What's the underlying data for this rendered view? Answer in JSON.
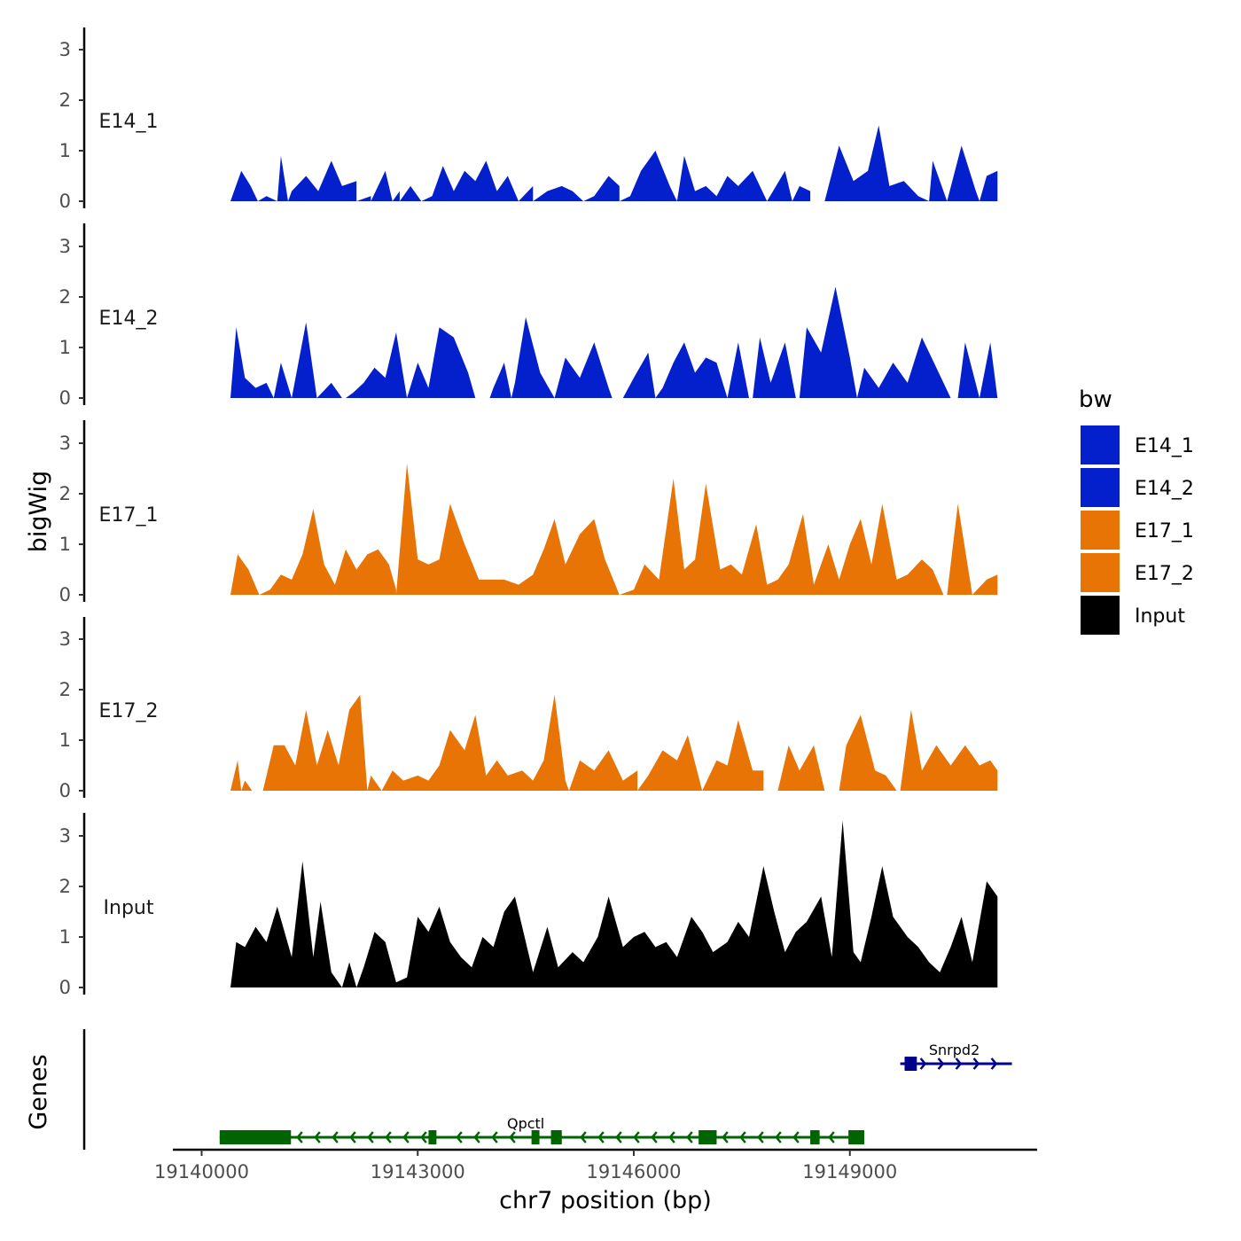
{
  "chart_data": {
    "type": "area",
    "title": "",
    "xlabel": "chr7 position (bp)",
    "ylabel": "bigWig",
    "genes_label": "Genes",
    "x_range": [
      19139600,
      19151600
    ],
    "x_ticks": [
      19140000,
      19143000,
      19146000,
      19149000
    ],
    "y_range": [
      0,
      3.4
    ],
    "y_ticks": [
      0,
      1,
      2,
      3
    ],
    "legend": {
      "title": "bw",
      "position": "right",
      "entries": [
        {
          "label": "E14_1",
          "color": "#0420cc"
        },
        {
          "label": "E14_2",
          "color": "#0420cc"
        },
        {
          "label": "E17_1",
          "color": "#e87405"
        },
        {
          "label": "E17_2",
          "color": "#e87405"
        },
        {
          "label": "Input",
          "color": "#000000"
        }
      ]
    },
    "series": [
      {
        "name": "E14_1",
        "color": "#0420cc",
        "x": [
          19140400,
          19140550,
          19140680,
          19140780,
          19140900,
          19141100,
          19141250,
          19141450,
          19141620,
          19141800,
          19141950,
          19142150,
          19142350,
          19142550,
          19142750,
          19142900,
          19143050,
          19143200,
          19143350,
          19143500,
          19143650,
          19143800,
          19143950,
          19144100,
          19144250,
          19144400,
          19144600,
          19144800,
          19145000,
          19145150,
          19145300,
          19145450,
          19145650,
          19145800,
          19145950,
          19146100,
          19146300,
          19146500,
          19146700,
          19146850,
          19147000,
          19147150,
          19147300,
          19147450,
          19147650,
          19147850,
          19148100,
          19148300,
          19148450,
          19148650,
          19148850,
          19149050,
          19149250,
          19149400,
          19149550,
          19149750,
          19149950,
          19150150,
          19150350,
          19150550,
          19150750,
          19150900,
          19151050
        ],
        "values": [
          0.1,
          0.6,
          0.3,
          0.0,
          0.1,
          0.9,
          0.2,
          0.5,
          0.2,
          0.8,
          0.3,
          0.4,
          0.1,
          0.6,
          0.2,
          0.3,
          0.0,
          0.1,
          0.7,
          0.2,
          0.6,
          0.4,
          0.8,
          0.2,
          0.5,
          0.0,
          0.3,
          0.2,
          0.3,
          0.2,
          0.0,
          0.1,
          0.5,
          0.3,
          0.1,
          0.6,
          1.0,
          0.3,
          0.9,
          0.2,
          0.3,
          0.1,
          0.5,
          0.3,
          0.6,
          0.0,
          0.6,
          0.3,
          0.2,
          0.0,
          1.1,
          0.4,
          0.6,
          1.5,
          0.3,
          0.4,
          0.1,
          0.8,
          0.0,
          1.1,
          0.2,
          0.5,
          0.6
        ],
        "zero_at": [
          19140400,
          19141050,
          19141200,
          19142150,
          19142350,
          19142650,
          19142750,
          19144600,
          19145800,
          19146600,
          19147850,
          19148200,
          19148450,
          19148650,
          19150100,
          19150800
        ]
      },
      {
        "name": "E14_2",
        "color": "#0420cc",
        "x": [
          19140400,
          19140480,
          19140600,
          19140750,
          19140900,
          19141000,
          19141100,
          19141250,
          19141450,
          19141600,
          19141800,
          19141950,
          19142100,
          19142250,
          19142400,
          19142550,
          19142700,
          19142850,
          19143000,
          19143150,
          19143300,
          19143500,
          19143700,
          19143900,
          19144050,
          19144200,
          19144350,
          19144500,
          19144700,
          19144900,
          19145050,
          19145250,
          19145450,
          19145650,
          19145850,
          19146000,
          19146200,
          19146400,
          19146550,
          19146700,
          19146850,
          19147000,
          19147150,
          19147300,
          19147450,
          19147600,
          19147750,
          19147900,
          19148100,
          19148250,
          19148400,
          19148600,
          19148800,
          19149000,
          19149200,
          19149400,
          19149600,
          19149800,
          19150000,
          19150200,
          19150400,
          19150600,
          19150800,
          19150950,
          19151050
        ],
        "values": [
          0.0,
          1.4,
          0.4,
          0.2,
          0.3,
          0.0,
          0.7,
          0.0,
          1.5,
          0.0,
          0.3,
          0.0,
          0.1,
          0.3,
          0.6,
          0.4,
          1.3,
          0.0,
          0.7,
          0.2,
          1.4,
          1.2,
          0.5,
          0.0,
          0.2,
          0.7,
          0.3,
          1.6,
          0.5,
          0.0,
          0.8,
          0.4,
          1.1,
          0.2,
          0.0,
          0.4,
          0.9,
          0.2,
          0.7,
          1.1,
          0.5,
          0.8,
          0.7,
          0.0,
          1.1,
          0.0,
          1.2,
          0.3,
          1.1,
          0.0,
          1.4,
          0.9,
          2.2,
          0.8,
          0.6,
          0.2,
          0.7,
          0.3,
          1.2,
          0.6,
          0.0,
          1.1,
          0.0,
          1.1,
          0.0
        ],
        "zero_at": [
          19140400,
          19141000,
          19141250,
          19141600,
          19142000,
          19143800,
          19144000,
          19144300,
          19144900,
          19145700,
          19146300,
          19147300,
          19147650,
          19148300,
          19149100,
          19150500,
          19151050
        ]
      },
      {
        "name": "E17_1",
        "color": "#e87405",
        "x": [
          19140400,
          19140500,
          19140650,
          19140800,
          19140950,
          19141100,
          19141250,
          19141400,
          19141550,
          19141700,
          19141850,
          19142000,
          19142150,
          19142300,
          19142450,
          19142600,
          19142700,
          19142850,
          19143000,
          19143150,
          19143300,
          19143450,
          19143650,
          19143850,
          19144050,
          19144200,
          19144400,
          19144600,
          19144750,
          19144900,
          19145050,
          19145250,
          19145450,
          19145600,
          19145800,
          19146000,
          19146150,
          19146350,
          19146550,
          19146700,
          19146850,
          19147000,
          19147200,
          19147350,
          19147500,
          19147700,
          19147850,
          19148000,
          19148150,
          19148350,
          19148500,
          19148700,
          19148850,
          19149000,
          19149150,
          19149300,
          19149450,
          19149650,
          19149800,
          19150000,
          19150150,
          19150350,
          19150500,
          19150700,
          19150900,
          19151050
        ],
        "values": [
          0.0,
          0.8,
          0.5,
          0.0,
          0.1,
          0.4,
          0.3,
          0.8,
          1.7,
          0.6,
          0.2,
          0.9,
          0.5,
          0.8,
          0.9,
          0.6,
          0.1,
          2.6,
          0.7,
          0.6,
          0.7,
          1.8,
          1.0,
          0.3,
          0.3,
          0.3,
          0.2,
          0.4,
          0.9,
          1.5,
          0.6,
          1.2,
          1.5,
          0.7,
          0.0,
          0.1,
          0.6,
          0.3,
          2.3,
          0.5,
          0.7,
          2.2,
          0.5,
          0.6,
          0.4,
          1.4,
          0.2,
          0.3,
          0.6,
          1.6,
          0.2,
          1.0,
          0.3,
          1.0,
          1.5,
          0.6,
          1.8,
          0.3,
          0.4,
          0.7,
          0.5,
          0.0,
          1.8,
          0.0,
          0.3,
          0.4
        ],
        "zero_at": [
          19140400,
          19140800,
          19142700,
          19145800,
          19150300,
          19150700
        ]
      },
      {
        "name": "E17_2",
        "color": "#e87405",
        "x": [
          19140400,
          19140500,
          19140600,
          19140750,
          19140850,
          19141000,
          19141150,
          19141300,
          19141450,
          19141600,
          19141750,
          19141900,
          19142050,
          19142200,
          19142350,
          19142500,
          19142650,
          19142800,
          19143000,
          19143150,
          19143300,
          19143450,
          19143650,
          19143800,
          19143950,
          19144100,
          19144250,
          19144450,
          19144600,
          19144750,
          19144900,
          19145050,
          19145250,
          19145450,
          19145650,
          19145850,
          19146050,
          19146200,
          19146400,
          19146600,
          19146750,
          19146950,
          19147150,
          19147300,
          19147450,
          19147650,
          19147800,
          19148000,
          19148150,
          19148300,
          19148500,
          19148650,
          19148800,
          19148950,
          19149150,
          19149350,
          19149500,
          19149650,
          19149850,
          19150000,
          19150200,
          19150400,
          19150600,
          19150800,
          19150950,
          19151050
        ],
        "values": [
          0.0,
          0.6,
          0.2,
          0.0,
          0.0,
          0.9,
          0.9,
          0.5,
          1.6,
          0.5,
          1.2,
          0.5,
          1.6,
          1.9,
          0.3,
          0.0,
          0.4,
          0.2,
          0.3,
          0.2,
          0.5,
          1.2,
          0.8,
          1.5,
          0.3,
          0.6,
          0.3,
          0.4,
          0.2,
          0.6,
          1.9,
          0.2,
          0.6,
          0.4,
          0.8,
          0.2,
          0.4,
          0.3,
          0.8,
          0.6,
          1.1,
          0.0,
          0.6,
          0.5,
          1.4,
          0.4,
          0.4,
          0.0,
          0.9,
          0.4,
          0.9,
          0.0,
          0.0,
          0.9,
          1.5,
          0.4,
          0.3,
          0.0,
          1.6,
          0.4,
          0.9,
          0.5,
          0.9,
          0.5,
          0.6,
          0.4
        ],
        "zero_at": [
          19140400,
          19140550,
          19140700,
          19142300,
          19145100,
          19146050,
          19146950,
          19147800,
          19148750,
          19148850,
          19149700
        ]
      },
      {
        "name": "Input",
        "color": "#000000",
        "x": [
          19140400,
          19140480,
          19140600,
          19140750,
          19140900,
          19141050,
          19141250,
          19141400,
          19141550,
          19141650,
          19141800,
          19141950,
          19142050,
          19142150,
          19142250,
          19142400,
          19142550,
          19142700,
          19142850,
          19143000,
          19143150,
          19143300,
          19143450,
          19143600,
          19143750,
          19143900,
          19144050,
          19144200,
          19144350,
          19144450,
          19144600,
          19144800,
          19144950,
          19145150,
          19145300,
          19145500,
          19145650,
          19145850,
          19146000,
          19146150,
          19146300,
          19146450,
          19146600,
          19146800,
          19146950,
          19147100,
          19147300,
          19147450,
          19147600,
          19147800,
          19147950,
          19148100,
          19148250,
          19148400,
          19148600,
          19148750,
          19148900,
          19149050,
          19149150,
          19149300,
          19149450,
          19149600,
          19149800,
          19149950,
          19150100,
          19150250,
          19150400,
          19150550,
          19150700,
          19150900,
          19151050
        ],
        "values": [
          0.0,
          0.9,
          0.8,
          1.2,
          0.9,
          1.6,
          0.6,
          2.5,
          0.6,
          1.7,
          0.3,
          0.0,
          0.5,
          0.0,
          0.4,
          1.1,
          0.9,
          0.1,
          0.2,
          1.4,
          1.1,
          1.6,
          0.9,
          0.6,
          0.4,
          1.0,
          0.8,
          1.5,
          1.8,
          1.2,
          0.3,
          1.2,
          0.4,
          0.7,
          0.5,
          1.0,
          1.8,
          0.8,
          1.0,
          1.1,
          0.8,
          0.9,
          0.6,
          1.4,
          1.1,
          0.7,
          0.9,
          1.3,
          1.0,
          2.4,
          1.5,
          0.7,
          1.1,
          1.3,
          1.8,
          0.6,
          3.3,
          0.7,
          0.5,
          1.4,
          2.4,
          1.4,
          1.0,
          0.8,
          0.5,
          0.3,
          0.8,
          1.4,
          0.5,
          2.1,
          1.8
        ],
        "zero_at": [
          19140400,
          19141950,
          19142150,
          19151050
        ]
      }
    ],
    "genes": [
      {
        "name": "Qpctl",
        "strand": "-",
        "color": "#006400",
        "start": 19140250,
        "end": 19149200,
        "exons": [
          [
            19140250,
            19141240
          ],
          [
            19143150,
            19143260
          ],
          [
            19144580,
            19144690
          ],
          [
            19144850,
            19145000
          ],
          [
            19146900,
            19147150
          ],
          [
            19148450,
            19148580
          ],
          [
            19148980,
            19149200
          ]
        ]
      },
      {
        "name": "Snrpd2",
        "strand": "+",
        "color": "#00008b",
        "start": 19149700,
        "end": 19151250,
        "exons": [
          [
            19149760,
            19149930
          ]
        ]
      }
    ]
  }
}
